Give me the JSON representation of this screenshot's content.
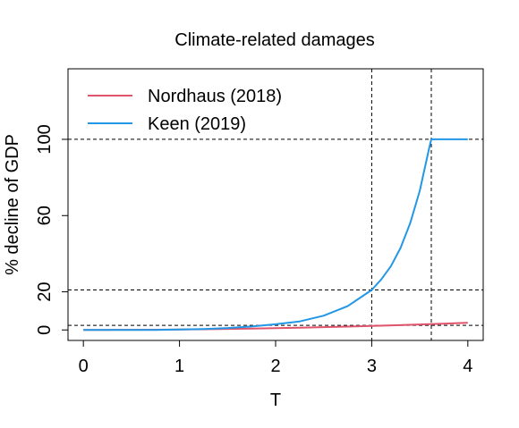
{
  "chart_data": {
    "type": "line",
    "title": "Climate-related damages",
    "xlabel": "T",
    "ylabel": "% decline of GDP",
    "xlim": [
      -0.16,
      4.16
    ],
    "ylim": [
      -5.5,
      137
    ],
    "x_ticks": [
      0,
      1,
      2,
      3,
      4
    ],
    "x_tick_labels": [
      "0",
      "1",
      "2",
      "3",
      "4"
    ],
    "y_ticks": [
      0,
      20,
      60,
      100
    ],
    "y_tick_labels": [
      "0",
      "20",
      "60",
      "100"
    ],
    "grid": false,
    "legend_position": "top-left",
    "reference_lines": {
      "vertical": [
        3.0,
        3.62
      ],
      "horizontal": [
        2.4,
        21.0,
        100
      ]
    },
    "series": [
      {
        "name": "Nordhaus (2018)",
        "color": "#DF536B",
        "x": [
          0,
          0.25,
          0.5,
          0.75,
          1.0,
          1.25,
          1.5,
          1.75,
          2.0,
          2.25,
          2.5,
          2.75,
          3.0,
          3.25,
          3.5,
          3.75,
          4.0
        ],
        "y": [
          0,
          0.02,
          0.07,
          0.13,
          0.24,
          0.37,
          0.53,
          0.72,
          0.94,
          1.19,
          1.47,
          1.78,
          2.12,
          2.49,
          2.88,
          3.31,
          3.76
        ]
      },
      {
        "name": "Keen (2019)",
        "color": "#2297E6",
        "x": [
          0,
          0.25,
          0.5,
          0.75,
          1.0,
          1.25,
          1.5,
          1.75,
          2.0,
          2.25,
          2.5,
          2.75,
          3.0,
          3.1,
          3.2,
          3.3,
          3.4,
          3.5,
          3.6,
          3.62,
          3.8,
          4.0
        ],
        "y": [
          0,
          0,
          0,
          0.04,
          0.2,
          0.5,
          1.0,
          1.8,
          3.0,
          4.5,
          7.5,
          12.5,
          21.0,
          26.5,
          33.5,
          43.0,
          56.0,
          73.0,
          96.0,
          100,
          100,
          100
        ]
      }
    ]
  }
}
